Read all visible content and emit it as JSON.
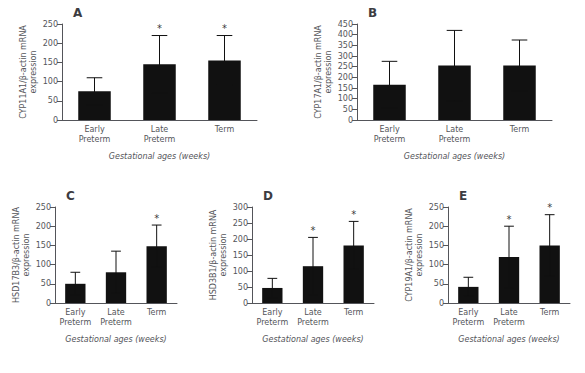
{
  "chart_data": [
    {
      "type": "bar",
      "title": "A",
      "ylabel": "CYP11A1/β-actin mRNA\nexpression",
      "xlabel": "Gestational ages (weeks)",
      "categories": [
        "Early\nPreterm",
        "Late\nPreterm",
        "Term"
      ],
      "values": [
        75,
        145,
        155
      ],
      "errors": [
        35,
        75,
        65
      ],
      "color": "#111111",
      "ylim": [
        0,
        250
      ],
      "yticks": [
        0,
        50,
        100,
        150,
        200,
        250
      ],
      "annotations": [
        {
          "category": "Late\nPreterm",
          "text": "*"
        },
        {
          "category": "Term",
          "text": "*"
        }
      ],
      "grid": false
    },
    {
      "type": "bar",
      "title": "B",
      "ylabel": "CYP17A1/β-actin mRNA\nexpression",
      "xlabel": "Gestational ages (weeks)",
      "categories": [
        "Early\nPreterm",
        "Late\nPreterm",
        "Term"
      ],
      "values": [
        165,
        255,
        255
      ],
      "errors": [
        110,
        165,
        120
      ],
      "color": "#111111",
      "ylim": [
        0,
        450
      ],
      "yticks": [
        0,
        50,
        100,
        150,
        200,
        250,
        300,
        350,
        400,
        450
      ],
      "annotations": [],
      "grid": false
    },
    {
      "type": "bar",
      "title": "C",
      "ylabel": "HSD17B3/β-actin mRNA\nexpression",
      "xlabel": "Gestational ages (weeks)",
      "categories": [
        "Early\nPreterm",
        "Late\nPreterm",
        "Term"
      ],
      "values": [
        50,
        80,
        148
      ],
      "errors": [
        30,
        55,
        55
      ],
      "color": "#111111",
      "ylim": [
        0,
        250
      ],
      "yticks": [
        0,
        50,
        100,
        150,
        200,
        250
      ],
      "annotations": [
        {
          "category": "Term",
          "text": "*"
        }
      ],
      "grid": false
    },
    {
      "type": "bar",
      "title": "D",
      "ylabel": "HSD3B1/β-actin mRNA\nexpression",
      "xlabel": "Gestational ages (weeks)",
      "categories": [
        "Early\nPreterm",
        "Late\nPreterm",
        "Term"
      ],
      "values": [
        47,
        115,
        180
      ],
      "errors": [
        30,
        90,
        75
      ],
      "color": "#111111",
      "ylim": [
        0,
        300
      ],
      "yticks": [
        0,
        50,
        100,
        150,
        200,
        250,
        300
      ],
      "annotations": [
        {
          "category": "Late\nPreterm",
          "text": "*"
        },
        {
          "category": "Term",
          "text": "*"
        }
      ],
      "grid": false
    },
    {
      "type": "bar",
      "title": "E",
      "ylabel": "CYP19A1/β-actin mRNA\nexpression",
      "xlabel": "Gestational ages (weeks)",
      "categories": [
        "Early\nPreterm",
        "Late\nPreterm",
        "Term"
      ],
      "values": [
        42,
        120,
        150
      ],
      "errors": [
        25,
        80,
        80
      ],
      "color": "#111111",
      "ylim": [
        0,
        250
      ],
      "yticks": [
        0,
        50,
        100,
        150,
        200,
        250
      ],
      "annotations": [
        {
          "category": "Late\nPreterm",
          "text": "*"
        },
        {
          "category": "Term",
          "text": "*"
        }
      ],
      "grid": false
    }
  ]
}
